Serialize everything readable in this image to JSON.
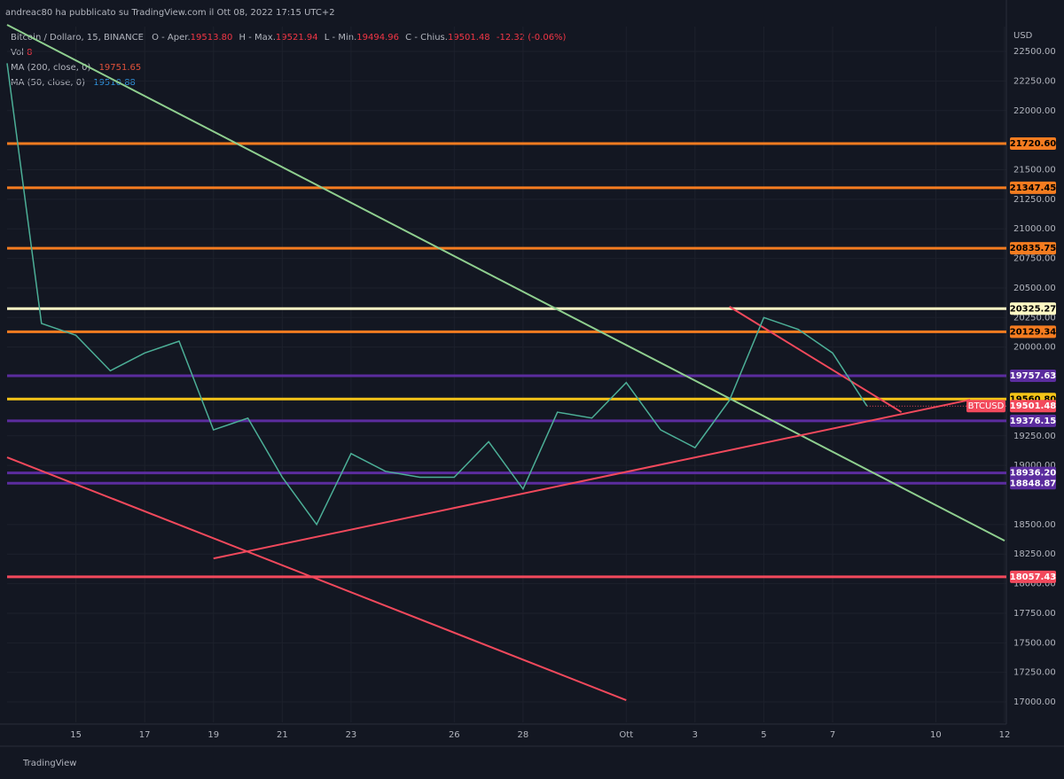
{
  "header": {
    "attribution": "andreac80 ha pubblicato su TradingView.com il Ott 08, 2022 17:15 UTC+2",
    "footer": "TradingView"
  },
  "legend": {
    "symbol": "Bitcoin / Dollaro, 15, BINANCE",
    "open_label": "O - Aper.",
    "open": "19513.80",
    "high_label": "H - Max.",
    "high": "19521.94",
    "low_label": "L - Min.",
    "low": "19494.96",
    "close_label": "C - Chius.",
    "close": "19501.48",
    "change": "-12.32 (-0.06%)",
    "vol_label": "Vol",
    "vol": "8",
    "ma200_label": "MA (200, close, 0)",
    "ma200": "19751.65",
    "ma50_label": "MA (50, close, 0)",
    "ma50": "19510.88"
  },
  "chart_data": {
    "type": "line",
    "y_unit": "USD",
    "x": [
      "2022-09-13",
      "2022-09-14",
      "2022-09-15",
      "2022-09-16",
      "2022-09-17",
      "2022-09-18",
      "2022-09-19",
      "2022-09-20",
      "2022-09-21",
      "2022-09-22",
      "2022-09-23",
      "2022-09-24",
      "2022-09-25",
      "2022-09-26",
      "2022-09-27",
      "2022-09-28",
      "2022-09-29",
      "2022-09-30",
      "2022-10-01",
      "2022-10-02",
      "2022-10-03",
      "2022-10-04",
      "2022-10-05",
      "2022-10-06",
      "2022-10-07",
      "2022-10-08"
    ],
    "series": [
      {
        "name": "BTCUSD",
        "color": "#4caf97",
        "values": [
          22400,
          20200,
          20100,
          19800,
          19950,
          20050,
          19300,
          19400,
          18900,
          18500,
          19100,
          18950,
          18900,
          18900,
          19200,
          18800,
          19450,
          19400,
          19700,
          19300,
          19150,
          19550,
          20250,
          20150,
          19950,
          19501.48
        ],
        "value_labels": [
          null,
          null,
          null,
          null,
          null,
          null,
          null,
          null,
          null,
          null,
          null,
          null,
          null,
          null,
          null,
          null,
          null,
          null,
          null,
          null,
          null,
          null,
          null,
          null,
          null,
          "19501.48"
        ]
      }
    ],
    "xlim": [
      "2022-09-13",
      "2022-10-12"
    ],
    "xticks": [
      {
        "value": "2022-09-15",
        "label": "15"
      },
      {
        "value": "2022-09-17",
        "label": "17"
      },
      {
        "value": "2022-09-19",
        "label": "19"
      },
      {
        "value": "2022-09-21",
        "label": "21"
      },
      {
        "value": "2022-09-23",
        "label": "23"
      },
      {
        "value": "2022-09-26",
        "label": "26"
      },
      {
        "value": "2022-09-28",
        "label": "28"
      },
      {
        "value": "2022-10-01",
        "label": "Ott"
      },
      {
        "value": "2022-10-03",
        "label": "3"
      },
      {
        "value": "2022-10-05",
        "label": "5"
      },
      {
        "value": "2022-10-07",
        "label": "7"
      },
      {
        "value": "2022-10-10",
        "label": "10"
      },
      {
        "value": "2022-10-12",
        "label": "12"
      }
    ],
    "ylim": [
      16828,
      22710
    ],
    "yticks": [
      {
        "value": 22500,
        "label": "22500.00"
      },
      {
        "value": 22250,
        "label": "22250.00"
      },
      {
        "value": 22000,
        "label": "22000.00"
      },
      {
        "value": 21500,
        "label": "21500.00"
      },
      {
        "value": 21250,
        "label": "21250.00"
      },
      {
        "value": 21000,
        "label": "21000.00"
      },
      {
        "value": 20750,
        "label": "20750.00"
      },
      {
        "value": 20500,
        "label": "20500.00"
      },
      {
        "value": 20250,
        "label": "20250.00"
      },
      {
        "value": 20000,
        "label": "20000.00"
      },
      {
        "value": 19250,
        "label": "19250.00"
      },
      {
        "value": 19000,
        "label": "19000.00"
      },
      {
        "value": 18500,
        "label": "18500.00"
      },
      {
        "value": 18250,
        "label": "18250.00"
      },
      {
        "value": 18000,
        "label": "18000.00"
      },
      {
        "value": 17750,
        "label": "17750.00"
      },
      {
        "value": 17500,
        "label": "17500.00"
      },
      {
        "value": 17250,
        "label": "17250.00"
      },
      {
        "value": 17000,
        "label": "17000.00"
      }
    ],
    "grid": true,
    "levels": [
      {
        "value": 21720.6,
        "label": "21720.60",
        "color": "#f57c20",
        "text_color": "#000000"
      },
      {
        "value": 21347.45,
        "label": "21347.45",
        "color": "#f57c20",
        "text_color": "#000000"
      },
      {
        "value": 20835.75,
        "label": "20835.75",
        "color": "#f57c20",
        "text_color": "#000000"
      },
      {
        "value": 20325.27,
        "label": "20325.27",
        "color": "#fff9c4",
        "text_color": "#000000"
      },
      {
        "value": 20129.34,
        "label": "20129.34",
        "color": "#f57c20",
        "text_color": "#000000"
      },
      {
        "value": 19757.63,
        "label": "19757.63",
        "color": "#5b2c9e",
        "text_color": "#ffffff"
      },
      {
        "value": 19560.8,
        "label": "19560.80",
        "color": "#f5c518",
        "text_color": "#000000"
      },
      {
        "value": 19376.15,
        "label": "19376.15",
        "color": "#5b2c9e",
        "text_color": "#ffffff"
      },
      {
        "value": 18936.2,
        "label": "18936.20",
        "color": "#5b2c9e",
        "text_color": "#ffffff"
      },
      {
        "value": 18848.87,
        "label": "18848.87",
        "color": "#5b2c9e",
        "text_color": "#ffffff"
      },
      {
        "value": 18057.43,
        "label": "18057.43",
        "color": "#f2495c",
        "text_color": "#ffffff"
      }
    ],
    "trendlines": [
      {
        "x": [
          "2022-09-13",
          "2022-10-12"
        ],
        "values": [
          22725,
          18363
        ],
        "color": "#8fcf8f"
      },
      {
        "x": [
          "2022-09-13",
          "2022-10-01"
        ],
        "values": [
          19068,
          17015
        ],
        "color": "#f2495c"
      },
      {
        "x": [
          "2022-09-19",
          "2022-10-11"
        ],
        "values": [
          18213,
          19555
        ],
        "color": "#f2495c"
      },
      {
        "x": [
          "2022-10-04",
          "2022-10-09"
        ],
        "values": [
          20342,
          19450
        ],
        "color": "#f2495c"
      }
    ],
    "last_price_color": "#f2495c"
  }
}
